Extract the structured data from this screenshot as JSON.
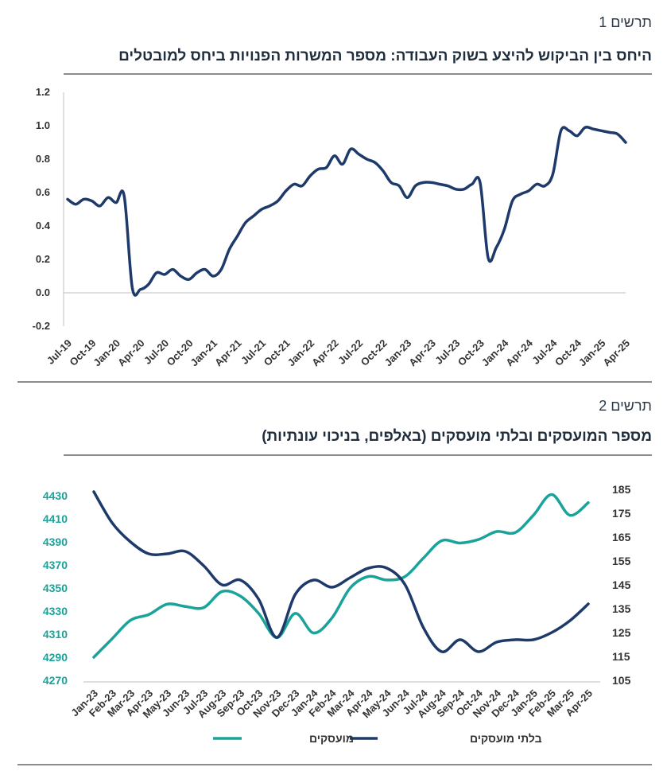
{
  "chart1": {
    "label": "תרשים 1",
    "title": "היחס בין הביקוש להיצע בשוק העבודה: מספר המשרות הפנויות ביחס למובטלים"
  },
  "chart2": {
    "label": "תרשים 2",
    "title": "מספר המועסקים ובלתי מועסקים (באלפים, בניכוי עונתיות)"
  },
  "colors": {
    "navy": "#1e3a6b",
    "teal": "#1aa39a",
    "axis": "#bfbfbf"
  },
  "chart_data": [
    {
      "type": "line",
      "title": "היחס בין הביקוש להיצע בשוק העבודה: מספר המשרות הפנויות ביחס למובטלים",
      "ylim": [
        -0.2,
        1.2
      ],
      "yticks": [
        "1.2",
        "1.0",
        "0.8",
        "0.6",
        "0.4",
        "0.2",
        "0.0",
        "-0.2"
      ],
      "xtick_labels": [
        "Jul-19",
        "Oct-19",
        "Jan-20",
        "Apr-20",
        "Jul-20",
        "Oct-20",
        "Jan-21",
        "Apr-21",
        "Jul-21",
        "Oct-21",
        "Jan-22",
        "Apr-22",
        "Jul-22",
        "Oct-22",
        "Jan-23",
        "Apr-23",
        "Jul-23",
        "Oct-23",
        "Jan-24",
        "Apr-24",
        "Jul-24",
        "Oct-24",
        "Jan-25",
        "Apr-25"
      ],
      "grid": false,
      "series": [
        {
          "color": "#1e3a6b",
          "x": [
            "Jul-19",
            "Aug-19",
            "Sep-19",
            "Oct-19",
            "Nov-19",
            "Dec-19",
            "Jan-20",
            "Feb-20",
            "Mar-20",
            "Apr-20",
            "May-20",
            "Jun-20",
            "Jul-20",
            "Aug-20",
            "Sep-20",
            "Oct-20",
            "Nov-20",
            "Dec-20",
            "Jan-21",
            "Feb-21",
            "Mar-21",
            "Apr-21",
            "May-21",
            "Jun-21",
            "Jul-21",
            "Aug-21",
            "Sep-21",
            "Oct-21",
            "Nov-21",
            "Dec-21",
            "Jan-22",
            "Feb-22",
            "Mar-22",
            "Apr-22",
            "May-22",
            "Jun-22",
            "Jul-22",
            "Aug-22",
            "Sep-22",
            "Oct-22",
            "Nov-22",
            "Dec-22",
            "Jan-23",
            "Feb-23",
            "Mar-23",
            "Apr-23",
            "May-23",
            "Jun-23",
            "Jul-23",
            "Aug-23",
            "Sep-23",
            "Oct-23",
            "Nov-23",
            "Dec-23",
            "Jan-24",
            "Feb-24",
            "Mar-24",
            "Apr-24",
            "May-24",
            "Jun-24",
            "Jul-24",
            "Aug-24",
            "Sep-24",
            "Oct-24",
            "Nov-24",
            "Dec-24",
            "Jan-25",
            "Feb-25",
            "Mar-25",
            "Apr-25"
          ],
          "values": [
            0.56,
            0.53,
            0.56,
            0.55,
            0.52,
            0.57,
            0.54,
            0.58,
            0.03,
            0.02,
            0.05,
            0.12,
            0.11,
            0.14,
            0.1,
            0.08,
            0.12,
            0.14,
            0.1,
            0.14,
            0.26,
            0.34,
            0.42,
            0.46,
            0.5,
            0.52,
            0.55,
            0.61,
            0.65,
            0.64,
            0.7,
            0.74,
            0.75,
            0.82,
            0.77,
            0.86,
            0.83,
            0.8,
            0.78,
            0.73,
            0.66,
            0.64,
            0.57,
            0.64,
            0.66,
            0.66,
            0.65,
            0.64,
            0.62,
            0.62,
            0.65,
            0.66,
            0.21,
            0.27,
            0.38,
            0.55,
            0.59,
            0.61,
            0.65,
            0.64,
            0.71,
            0.97,
            0.97,
            0.94,
            0.99,
            0.98,
            0.97,
            0.96,
            0.95,
            0.9
          ]
        }
      ]
    },
    {
      "type": "line",
      "title": "מספר המועסקים ובלתי מועסקים (באלפים, בניכוי עונתיות)",
      "x": [
        "Jan-23",
        "Feb-23",
        "Mar-23",
        "Apr-23",
        "May-23",
        "Jun-23",
        "Jul-23",
        "Aug-23",
        "Sep-23",
        "Oct-23",
        "Nov-23",
        "Dec-23",
        "Jan-24",
        "Feb-24",
        "Mar-24",
        "Apr-24",
        "May-24",
        "Jun-24",
        "Jul-24",
        "Aug-24",
        "Sep-24",
        "Oct-24",
        "Nov-24",
        "Dec-24",
        "Jan-25",
        "Feb-25",
        "Mar-25",
        "Apr-25"
      ],
      "y_left": {
        "ylim": [
          4270,
          4430
        ],
        "ticks": [
          "4430",
          "4410",
          "4390",
          "4370",
          "4350",
          "4330",
          "4310",
          "4290",
          "4270"
        ]
      },
      "y_right": {
        "ylim": [
          105,
          185
        ],
        "ticks": [
          "185",
          "175",
          "165",
          "155",
          "145",
          "135",
          "125",
          "115",
          "105"
        ]
      },
      "grid": false,
      "legend_position": "bottom",
      "series": [
        {
          "name": "מועסקים",
          "axis": "left",
          "color": "#1aa39a",
          "values": [
            4290,
            4306,
            4322,
            4327,
            4336,
            4334,
            4333,
            4347,
            4343,
            4328,
            4307,
            4328,
            4311,
            4324,
            4350,
            4360,
            4357,
            4360,
            4376,
            4391,
            4389,
            4392,
            4399,
            4398,
            4413,
            4431,
            4413,
            4424
          ]
        },
        {
          "name": "בלתי מועסקים",
          "axis": "right",
          "color": "#1e3a6b",
          "values": [
            184,
            171,
            163,
            158,
            158,
            159,
            153,
            145,
            147,
            139,
            123,
            141,
            147,
            144,
            148,
            152,
            152,
            145,
            127,
            117,
            122,
            117,
            121,
            122,
            122,
            125,
            130,
            137
          ]
        }
      ]
    }
  ]
}
